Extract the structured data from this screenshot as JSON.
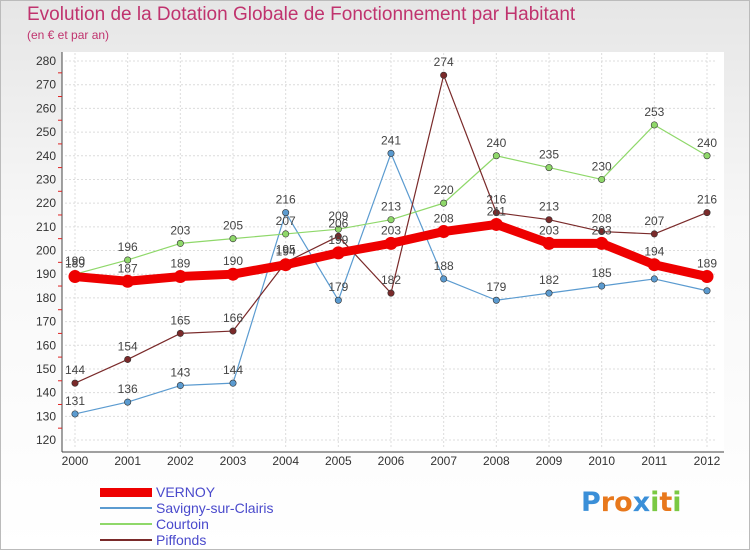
{
  "header": {
    "title": "Evolution de la Dotation Globale de Fonctionnement par Habitant",
    "subtitle": "(en € et par an)"
  },
  "logo": {
    "text": "Proxiti",
    "letters": [
      "P",
      "r",
      "o",
      "x",
      "i",
      "t",
      "i"
    ],
    "colors": [
      "#3a8fd8",
      "#e8781c",
      "#e8781c",
      "#3a8fd8",
      "#7ac943",
      "#e8781c",
      "#7ac943"
    ]
  },
  "chart_data": {
    "type": "line",
    "title": "Evolution de la Dotation Globale de Fonctionnement par Habitant",
    "subtitle": "(en € et par an)",
    "xlabel": "",
    "ylabel": "",
    "ylim": [
      120,
      280
    ],
    "yticks": [
      120,
      130,
      140,
      150,
      160,
      170,
      180,
      190,
      200,
      210,
      220,
      230,
      240,
      250,
      260,
      270,
      280
    ],
    "categories": [
      "2000",
      "2001",
      "2002",
      "2003",
      "2004",
      "2005",
      "2006",
      "2007",
      "2008",
      "2009",
      "2010",
      "2011",
      "2012"
    ],
    "grid": true,
    "legend_position": "bottom-left",
    "series": [
      {
        "name": "Savigny-sur-Clairis",
        "color": "#5b9bd0",
        "width": 1.2,
        "values": [
          131,
          136,
          143,
          144,
          216,
          179,
          241,
          188,
          179,
          182,
          185,
          188,
          183
        ],
        "labels": [
          "131",
          "136",
          "143",
          "144",
          "216",
          "179",
          "241",
          "188",
          "179",
          "182",
          "185",
          "",
          ""
        ]
      },
      {
        "name": "Courtoin",
        "color": "#8fd86a",
        "width": 1.2,
        "values": [
          190,
          196,
          203,
          205,
          207,
          209,
          213,
          220,
          240,
          235,
          230,
          253,
          240
        ],
        "labels": [
          "190",
          "196",
          "203",
          "205",
          "207",
          "209",
          "213",
          "220",
          "240",
          "235",
          "230",
          "253",
          "240"
        ]
      },
      {
        "name": "Piffonds",
        "color": "#7a2a2a",
        "width": 1.2,
        "values": [
          144,
          154,
          165,
          166,
          195,
          206,
          182,
          274,
          216,
          213,
          208,
          207,
          216
        ],
        "labels": [
          "144",
          "154",
          "165",
          "166",
          "195",
          "206",
          "182",
          "274",
          "216",
          "213",
          "208",
          "207",
          "216"
        ]
      },
      {
        "name": "VERNOY",
        "color": "#ee0000",
        "width": 9,
        "values": [
          189,
          187,
          189,
          190,
          194,
          199,
          203,
          208,
          211,
          203,
          203,
          194,
          189
        ],
        "labels": [
          "189",
          "187",
          "189",
          "190",
          "194",
          "199",
          "203",
          "208",
          "211",
          "203",
          "203",
          "194",
          "189"
        ]
      }
    ],
    "legend": [
      "VERNOY",
      "Savigny-sur-Clairis",
      "Courtoin",
      "Piffonds"
    ]
  }
}
